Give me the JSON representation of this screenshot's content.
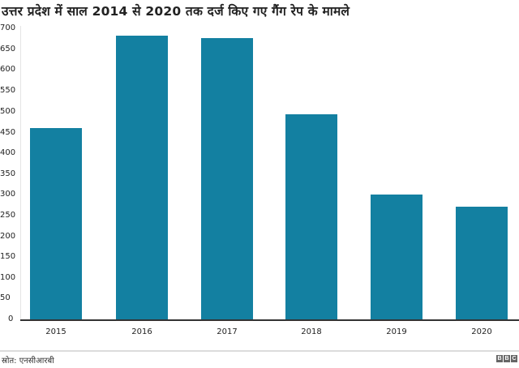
{
  "header": {
    "title": "उत्तर प्रदेश में साल 2014 से 2020 तक दर्ज किए गए गैंग रेप के मामले"
  },
  "footer": {
    "source": "स्रोत: एनसीआरबी",
    "logo_letters": [
      "B",
      "B",
      "C"
    ]
  },
  "colors": {
    "bar": "#1380a1",
    "baseline": "#333333",
    "axis": "#e4e4e4"
  },
  "chart_data": {
    "type": "bar",
    "title": "उत्तर प्रदेश में साल 2014 से 2020 तक दर्ज किए गए गैंग रेप के मामले",
    "xlabel": "",
    "ylabel": "",
    "categories": [
      "2015",
      "2016",
      "2017",
      "2018",
      "2019",
      "2020"
    ],
    "values": [
      460,
      683,
      677,
      494,
      302,
      272
    ],
    "ylim": [
      0,
      700
    ],
    "yticks": [
      "700",
      "650",
      "600",
      "550",
      "500",
      "450",
      "400",
      "350",
      "300",
      "250",
      "200",
      "150",
      "100",
      "50",
      "0"
    ],
    "grid": false,
    "legend": null,
    "source": "स्रोत: एनसीआरबी"
  }
}
